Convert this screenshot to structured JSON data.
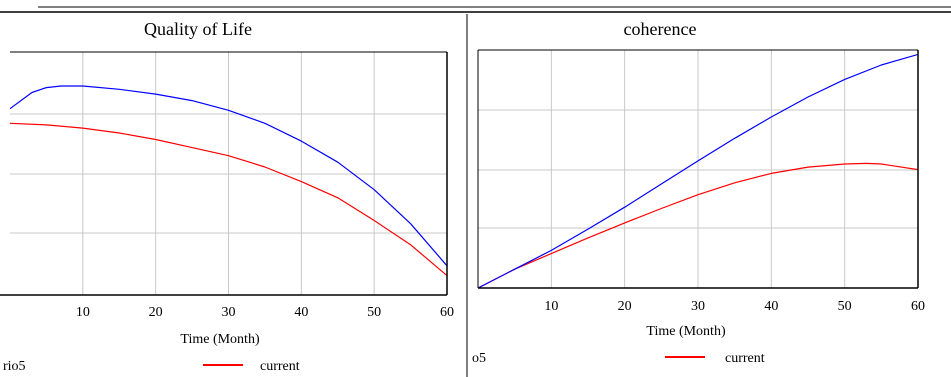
{
  "colors": {
    "series_1": "#ff0000",
    "series_2": "#0000ff",
    "grid": "#c8c8c8"
  },
  "chart_data": [
    {
      "type": "line",
      "title": "Quality of Life",
      "xlabel": "Time (Month)",
      "ylabel": "",
      "xlim": [
        0,
        60
      ],
      "xticks": [
        10,
        20,
        30,
        40,
        50,
        60
      ],
      "grid": true,
      "legend_position": "bottom",
      "cropped_legend_text": "rio5",
      "series": [
        {
          "name": "current",
          "color": "#ff0000",
          "x": [
            0,
            5,
            10,
            15,
            20,
            25,
            30,
            35,
            40,
            45,
            50,
            55,
            60
          ],
          "y": [
            1.06,
            1.05,
            1.03,
            1.0,
            0.96,
            0.91,
            0.86,
            0.79,
            0.7,
            0.6,
            0.46,
            0.31,
            0.12
          ]
        },
        {
          "color": "#0000ff",
          "x": [
            0,
            3,
            5,
            7,
            10,
            15,
            20,
            25,
            30,
            35,
            40,
            45,
            50,
            55,
            60
          ],
          "y": [
            1.15,
            1.25,
            1.28,
            1.29,
            1.29,
            1.27,
            1.24,
            1.2,
            1.14,
            1.06,
            0.95,
            0.82,
            0.65,
            0.44,
            0.18
          ]
        }
      ]
    },
    {
      "type": "line",
      "title": "coherence",
      "xlabel": "Time (Month)",
      "ylabel": "",
      "xlim": [
        0,
        60
      ],
      "xticks": [
        10,
        20,
        30,
        40,
        50,
        60
      ],
      "grid": true,
      "legend_position": "bottom",
      "cropped_legend_text": "o5",
      "series": [
        {
          "name": "current",
          "color": "#ff0000",
          "x": [
            0,
            5,
            10,
            15,
            20,
            25,
            30,
            35,
            40,
            45,
            50,
            53,
            55,
            60
          ],
          "y": [
            0.0,
            0.3,
            0.55,
            0.8,
            1.04,
            1.27,
            1.49,
            1.68,
            1.83,
            1.93,
            1.98,
            1.99,
            1.98,
            1.89
          ]
        },
        {
          "color": "#0000ff",
          "x": [
            0,
            5,
            10,
            15,
            20,
            25,
            30,
            35,
            40,
            45,
            50,
            55,
            60
          ],
          "y": [
            0.0,
            0.3,
            0.6,
            0.94,
            1.29,
            1.66,
            2.03,
            2.39,
            2.73,
            3.05,
            3.33,
            3.56,
            3.73
          ]
        }
      ]
    }
  ]
}
